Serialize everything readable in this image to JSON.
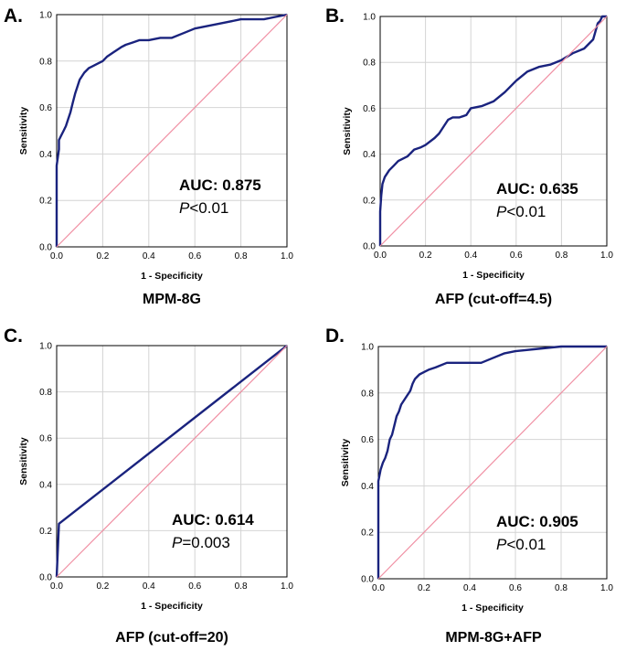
{
  "chart_data": [
    {
      "type": "line",
      "panel_label": "A.",
      "caption": "MPM-8G",
      "xlabel": "1 - Specificity",
      "ylabel": "Sensitivity",
      "xlim": [
        0,
        1
      ],
      "ylim": [
        0,
        1
      ],
      "xticks": [
        "0.0",
        "0.2",
        "0.4",
        "0.6",
        "0.8",
        "1.0"
      ],
      "yticks": [
        "0.0",
        "0.2",
        "0.4",
        "0.6",
        "0.8",
        "1.0"
      ],
      "auc_text": "AUC: 0.875",
      "p_italic": "P",
      "p_rest": "<0.01",
      "color": "#1a237e",
      "reference_color": "#f08fa3",
      "series": [
        {
          "name": "ROC",
          "x": [
            0,
            0,
            0.01,
            0.01,
            0.02,
            0.03,
            0.04,
            0.05,
            0.06,
            0.07,
            0.08,
            0.09,
            0.1,
            0.12,
            0.14,
            0.16,
            0.18,
            0.2,
            0.22,
            0.25,
            0.28,
            0.3,
            0.33,
            0.36,
            0.4,
            0.45,
            0.5,
            0.55,
            0.6,
            0.7,
            0.8,
            0.9,
            0.95,
            1.0
          ],
          "y": [
            0,
            0.35,
            0.42,
            0.46,
            0.48,
            0.5,
            0.52,
            0.55,
            0.58,
            0.62,
            0.66,
            0.69,
            0.72,
            0.75,
            0.77,
            0.78,
            0.79,
            0.8,
            0.82,
            0.84,
            0.86,
            0.87,
            0.88,
            0.89,
            0.89,
            0.9,
            0.9,
            0.92,
            0.94,
            0.96,
            0.98,
            0.98,
            0.99,
            1.0
          ]
        },
        {
          "name": "Reference",
          "x": [
            0,
            1
          ],
          "y": [
            0,
            1
          ]
        }
      ]
    },
    {
      "type": "line",
      "panel_label": "B.",
      "caption": "AFP (cut-off=4.5)",
      "xlabel": "1 - Specificity",
      "ylabel": "Sensitivity",
      "xlim": [
        0,
        1
      ],
      "ylim": [
        0,
        1
      ],
      "xticks": [
        "0.0",
        "0.2",
        "0.4",
        "0.6",
        "0.8",
        "1.0"
      ],
      "yticks": [
        "0.0",
        "0.2",
        "0.4",
        "0.6",
        "0.8",
        "1.0"
      ],
      "auc_text": "AUC: 0.635",
      "p_italic": "P",
      "p_rest": "<0.01",
      "color": "#1a237e",
      "reference_color": "#f08fa3",
      "series": [
        {
          "name": "ROC",
          "x": [
            0,
            0,
            0.005,
            0.01,
            0.02,
            0.04,
            0.06,
            0.08,
            0.1,
            0.12,
            0.15,
            0.18,
            0.2,
            0.24,
            0.26,
            0.28,
            0.3,
            0.32,
            0.35,
            0.38,
            0.4,
            0.45,
            0.5,
            0.55,
            0.6,
            0.65,
            0.7,
            0.75,
            0.8,
            0.85,
            0.9,
            0.94,
            0.96,
            0.97,
            0.98,
            1.0
          ],
          "y": [
            0,
            0.15,
            0.22,
            0.27,
            0.3,
            0.33,
            0.35,
            0.37,
            0.38,
            0.39,
            0.42,
            0.43,
            0.44,
            0.47,
            0.49,
            0.52,
            0.55,
            0.56,
            0.56,
            0.57,
            0.6,
            0.61,
            0.63,
            0.67,
            0.72,
            0.76,
            0.78,
            0.79,
            0.81,
            0.84,
            0.86,
            0.9,
            0.97,
            0.98,
            1.0,
            1.0
          ]
        },
        {
          "name": "Reference",
          "x": [
            0,
            1
          ],
          "y": [
            0,
            1
          ]
        }
      ]
    },
    {
      "type": "line",
      "panel_label": "C.",
      "caption": "AFP (cut-off=20)",
      "xlabel": "1 - Specificity",
      "ylabel": "Sensitivity",
      "xlim": [
        0,
        1
      ],
      "ylim": [
        0,
        1
      ],
      "xticks": [
        "0.0",
        "0.2",
        "0.4",
        "0.6",
        "0.8",
        "1.0"
      ],
      "yticks": [
        "0.0",
        "0.2",
        "0.4",
        "0.6",
        "0.8",
        "1.0"
      ],
      "auc_text": "AUC: 0.614",
      "p_italic": "P",
      "p_rest": "=0.003",
      "color": "#1a237e",
      "reference_color": "#f08fa3",
      "series": [
        {
          "name": "ROC",
          "x": [
            0,
            0.01,
            1.0
          ],
          "y": [
            0,
            0.23,
            1.0
          ]
        },
        {
          "name": "Reference",
          "x": [
            0,
            1
          ],
          "y": [
            0,
            1
          ]
        }
      ]
    },
    {
      "type": "line",
      "panel_label": "D.",
      "caption": "MPM-8G+AFP",
      "xlabel": "1 - Specificity",
      "ylabel": "Sensitivity",
      "xlim": [
        0,
        1
      ],
      "ylim": [
        0,
        1
      ],
      "xticks": [
        "0.0",
        "0.2",
        "0.4",
        "0.6",
        "0.8",
        "1.0"
      ],
      "yticks": [
        "0.0",
        "0.2",
        "0.4",
        "0.6",
        "0.8",
        "1.0"
      ],
      "auc_text": "AUC: 0.905",
      "p_italic": "P",
      "p_rest": "<0.01",
      "color": "#1a237e",
      "reference_color": "#f08fa3",
      "series": [
        {
          "name": "ROC",
          "x": [
            0,
            0,
            0.01,
            0.02,
            0.03,
            0.04,
            0.05,
            0.06,
            0.07,
            0.08,
            0.09,
            0.1,
            0.12,
            0.14,
            0.15,
            0.16,
            0.17,
            0.18,
            0.2,
            0.22,
            0.25,
            0.3,
            0.35,
            0.4,
            0.45,
            0.5,
            0.55,
            0.6,
            0.7,
            0.8,
            0.9,
            1.0
          ],
          "y": [
            0,
            0.42,
            0.47,
            0.5,
            0.52,
            0.55,
            0.6,
            0.62,
            0.66,
            0.7,
            0.72,
            0.75,
            0.78,
            0.81,
            0.84,
            0.86,
            0.87,
            0.88,
            0.89,
            0.9,
            0.91,
            0.93,
            0.93,
            0.93,
            0.93,
            0.95,
            0.97,
            0.98,
            0.99,
            1.0,
            1.0,
            1.0
          ]
        },
        {
          "name": "Reference",
          "x": [
            0,
            1
          ],
          "y": [
            0,
            1
          ]
        }
      ]
    }
  ]
}
